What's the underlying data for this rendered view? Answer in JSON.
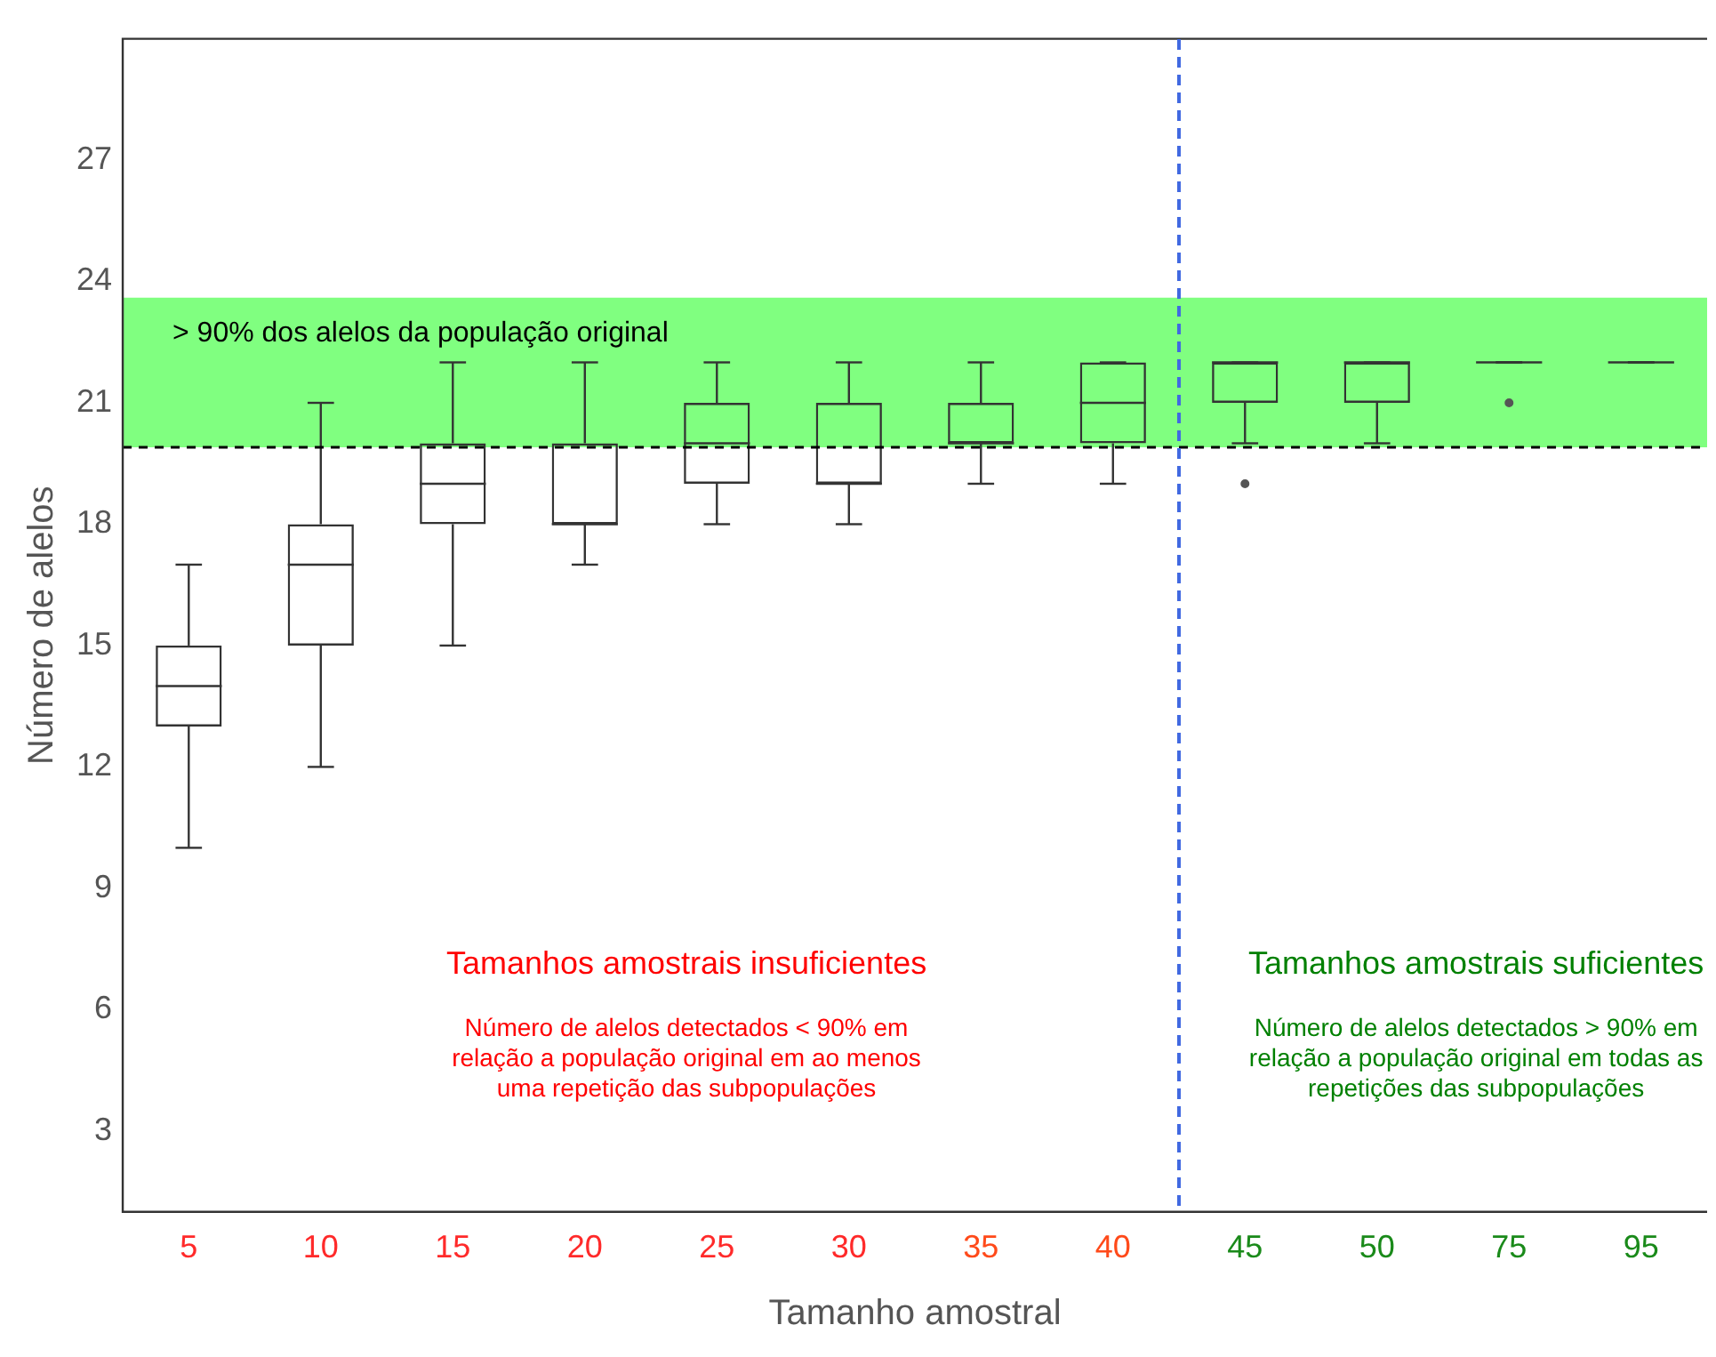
{
  "chart_data": {
    "type": "box",
    "xlabel": "Tamanho amostral",
    "ylabel": "Número de alelos",
    "categories": [
      "5",
      "10",
      "15",
      "20",
      "25",
      "30",
      "35",
      "40",
      "45",
      "50",
      "75",
      "95"
    ],
    "boxes": [
      {
        "low": 10,
        "q1": 13,
        "median": 14,
        "q3": 15,
        "high": 17
      },
      {
        "low": 12,
        "q1": 15,
        "median": 17,
        "q3": 18,
        "high": 21
      },
      {
        "low": 15,
        "q1": 18,
        "median": 19,
        "q3": 20,
        "high": 22
      },
      {
        "low": 17,
        "q1": 18,
        "median": 18,
        "q3": 20,
        "high": 22
      },
      {
        "low": 18,
        "q1": 19,
        "median": 20,
        "q3": 21,
        "high": 22
      },
      {
        "low": 18,
        "q1": 19,
        "median": 19,
        "q3": 21,
        "high": 22
      },
      {
        "low": 19,
        "q1": 20,
        "median": 20,
        "q3": 21,
        "high": 22
      },
      {
        "low": 19,
        "q1": 20,
        "median": 21,
        "q3": 22,
        "high": 22
      },
      {
        "low": 20,
        "q1": 21,
        "median": 22,
        "q3": 22,
        "high": 22,
        "outliers": [
          19
        ]
      },
      {
        "low": 20,
        "q1": 21,
        "median": 22,
        "q3": 22,
        "high": 22
      },
      {
        "low": 22,
        "q1": 22,
        "median": 22,
        "q3": 22,
        "high": 22,
        "outliers": [
          21
        ]
      },
      {
        "low": 22,
        "q1": 22,
        "median": 22,
        "q3": 22,
        "high": 22
      }
    ],
    "ylim": [
      1,
      30
    ],
    "yticks": [
      3,
      6,
      9,
      12,
      15,
      18,
      21,
      24,
      27
    ],
    "grid": false,
    "bands": [
      {
        "axis": "y",
        "from": 19.9,
        "to": 23.6,
        "label": "> 90% dos alelos da população original",
        "color": "#80ff80"
      }
    ],
    "ref_lines": [
      {
        "axis": "y",
        "value": 19.9,
        "color": "#000000",
        "line_style": "dashed"
      }
    ],
    "annotations": [
      "Tamanhos amostrais insuficientes",
      "Número de alelos detectados < 90% em\nrelação a população original em ao menos\numa repetição das subpopulações",
      "Tamanhos amostrais suficientes",
      "Número de alelos detectados > 90% em\nrelação a população original em todas as\nrepetições das subpopulações"
    ]
  }
}
